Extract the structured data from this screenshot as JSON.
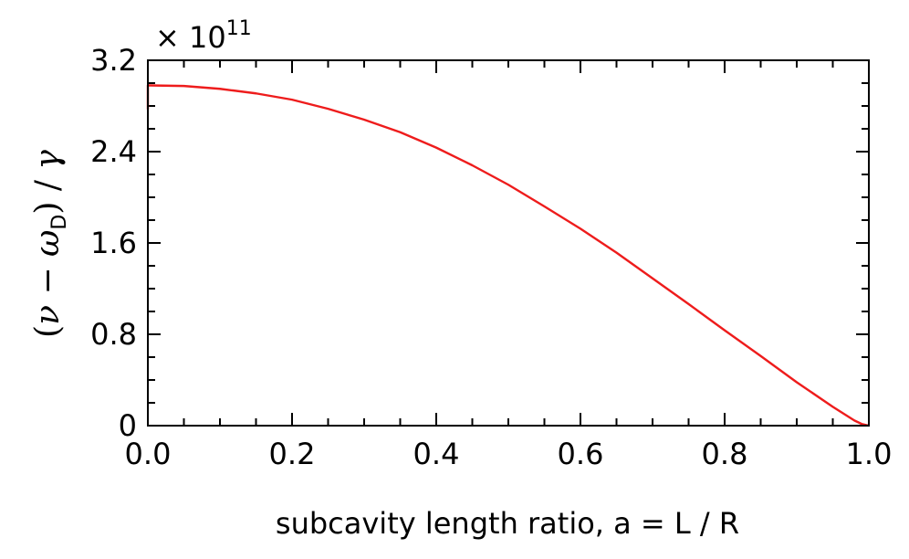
{
  "chart_data": {
    "type": "line",
    "xlabel": "subcavity length ratio,  a = L / R",
    "ylabel_parts": {
      "open": "(",
      "nu": "ν",
      "minus": " − ",
      "omega": "ω",
      "sub": "D",
      "close": ")",
      "slash": " / ",
      "gamma": "γ"
    },
    "y_multiplier": {
      "base": "× 10",
      "exponent": "11"
    },
    "xlim": [
      0.0,
      1.0
    ],
    "ylim": [
      0.0,
      3.2
    ],
    "x_ticks": [
      0.0,
      0.2,
      0.4,
      0.6,
      0.8,
      1.0
    ],
    "x_tick_labels": [
      "0.0",
      "0.2",
      "0.4",
      "0.6",
      "0.8",
      "1.0"
    ],
    "y_ticks": [
      0.0,
      0.8,
      1.6,
      2.4,
      3.2
    ],
    "y_tick_labels": [
      "0",
      "0.8",
      "1.6",
      "2.4",
      "3.2"
    ],
    "grid": false,
    "line_color": "#ee1c1c",
    "series": [
      {
        "x": [
          0.0,
          0.0,
          0.002,
          0.05,
          0.1,
          0.15,
          0.2,
          0.25,
          0.3,
          0.35,
          0.4,
          0.45,
          0.5,
          0.55,
          0.6,
          0.65,
          0.7,
          0.75,
          0.8,
          0.85,
          0.9,
          0.95,
          0.97,
          0.98,
          0.99,
          1.0
        ],
        "y": [
          2.77,
          2.98,
          2.98,
          2.975,
          2.95,
          2.91,
          2.855,
          2.775,
          2.68,
          2.57,
          2.435,
          2.28,
          2.11,
          1.92,
          1.725,
          1.515,
          1.29,
          1.065,
          0.835,
          0.61,
          0.38,
          0.165,
          0.085,
          0.045,
          0.015,
          0.0
        ]
      }
    ]
  }
}
